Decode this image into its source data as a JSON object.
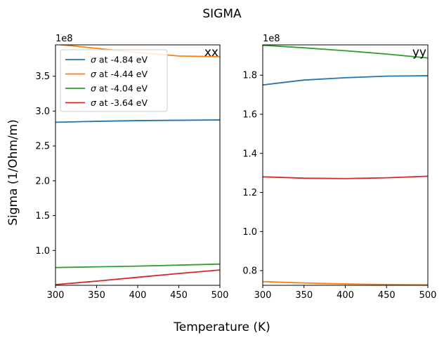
{
  "chart_data": {
    "title": "SIGMA",
    "xlabel": "Temperature (K)",
    "ylabel": "Sigma (1/Ohm/m)",
    "legend_placement": "upper-left",
    "panels": [
      {
        "type": "line",
        "name": "xx",
        "label": "xx",
        "offset_text": "1e8",
        "xlim": [
          300,
          500
        ],
        "ylim": [
          0.5,
          3.95
        ],
        "xticks": [
          300,
          350,
          400,
          450,
          500
        ],
        "xtick_labels": [
          "300",
          "350",
          "400",
          "450",
          "500"
        ],
        "yticks": [
          1.0,
          1.5,
          2.0,
          2.5,
          3.0,
          3.5
        ],
        "ytick_labels": [
          "1.0",
          "1.5",
          "2.0",
          "2.5",
          "3.0",
          "3.5"
        ],
        "series": [
          {
            "name": "σ at  -4.84 eV",
            "sigma": "σ",
            "rest": " at  -4.84 eV",
            "color": "#1f77b4",
            "x": [
              300,
              350,
              400,
              450,
              500
            ],
            "y": [
              2.84,
              2.853,
              2.863,
              2.868,
              2.873
            ]
          },
          {
            "name": "σ at  -4.44 eV",
            "sigma": "σ",
            "rest": " at  -4.44 eV",
            "color": "#ff7f0e",
            "x": [
              300,
              350,
              400,
              450,
              500
            ],
            "y": [
              3.96,
              3.9,
              3.84,
              3.79,
              3.78
            ]
          },
          {
            "name": "σ at  -4.04 eV",
            "sigma": "σ",
            "rest": " at  -4.04 eV",
            "color": "#2ca02c",
            "x": [
              300,
              350,
              400,
              450,
              500
            ],
            "y": [
              0.755,
              0.765,
              0.775,
              0.79,
              0.805
            ]
          },
          {
            "name": "σ at  -3.64 eV",
            "sigma": "σ",
            "rest": " at  -3.64 eV",
            "color": "#d62728",
            "x": [
              300,
              350,
              400,
              450,
              500
            ],
            "y": [
              0.51,
              0.56,
              0.615,
              0.67,
              0.72
            ]
          }
        ]
      },
      {
        "type": "line",
        "name": "yy",
        "label": "yy",
        "offset_text": "1e8",
        "xlim": [
          300,
          500
        ],
        "ylim": [
          0.725,
          1.955
        ],
        "xticks": [
          300,
          350,
          400,
          450,
          500
        ],
        "xtick_labels": [
          "300",
          "350",
          "400",
          "450",
          "500"
        ],
        "yticks": [
          0.8,
          1.0,
          1.2,
          1.4,
          1.6,
          1.8
        ],
        "ytick_labels": [
          "0.8",
          "1.0",
          "1.2",
          "1.4",
          "1.6",
          "1.8"
        ],
        "series": [
          {
            "name": "σ at  -4.84 eV",
            "color": "#1f77b4",
            "x": [
              300,
              350,
              400,
              450,
              500
            ],
            "y": [
              1.75,
              1.775,
              1.787,
              1.795,
              1.797
            ]
          },
          {
            "name": "σ at  -4.44 eV",
            "color": "#ff7f0e",
            "x": [
              300,
              350,
              400,
              450,
              500
            ],
            "y": [
              0.744,
              0.737,
              0.732,
              0.729,
              0.727
            ]
          },
          {
            "name": "σ at  -4.04 eV",
            "color": "#2ca02c",
            "x": [
              300,
              350,
              400,
              450,
              500
            ],
            "y": [
              1.953,
              1.94,
              1.925,
              1.908,
              1.888
            ]
          },
          {
            "name": "σ at  -3.64 eV",
            "color": "#d62728",
            "x": [
              300,
              350,
              400,
              450,
              500
            ],
            "y": [
              1.28,
              1.273,
              1.271,
              1.275,
              1.283
            ]
          }
        ]
      }
    ]
  }
}
